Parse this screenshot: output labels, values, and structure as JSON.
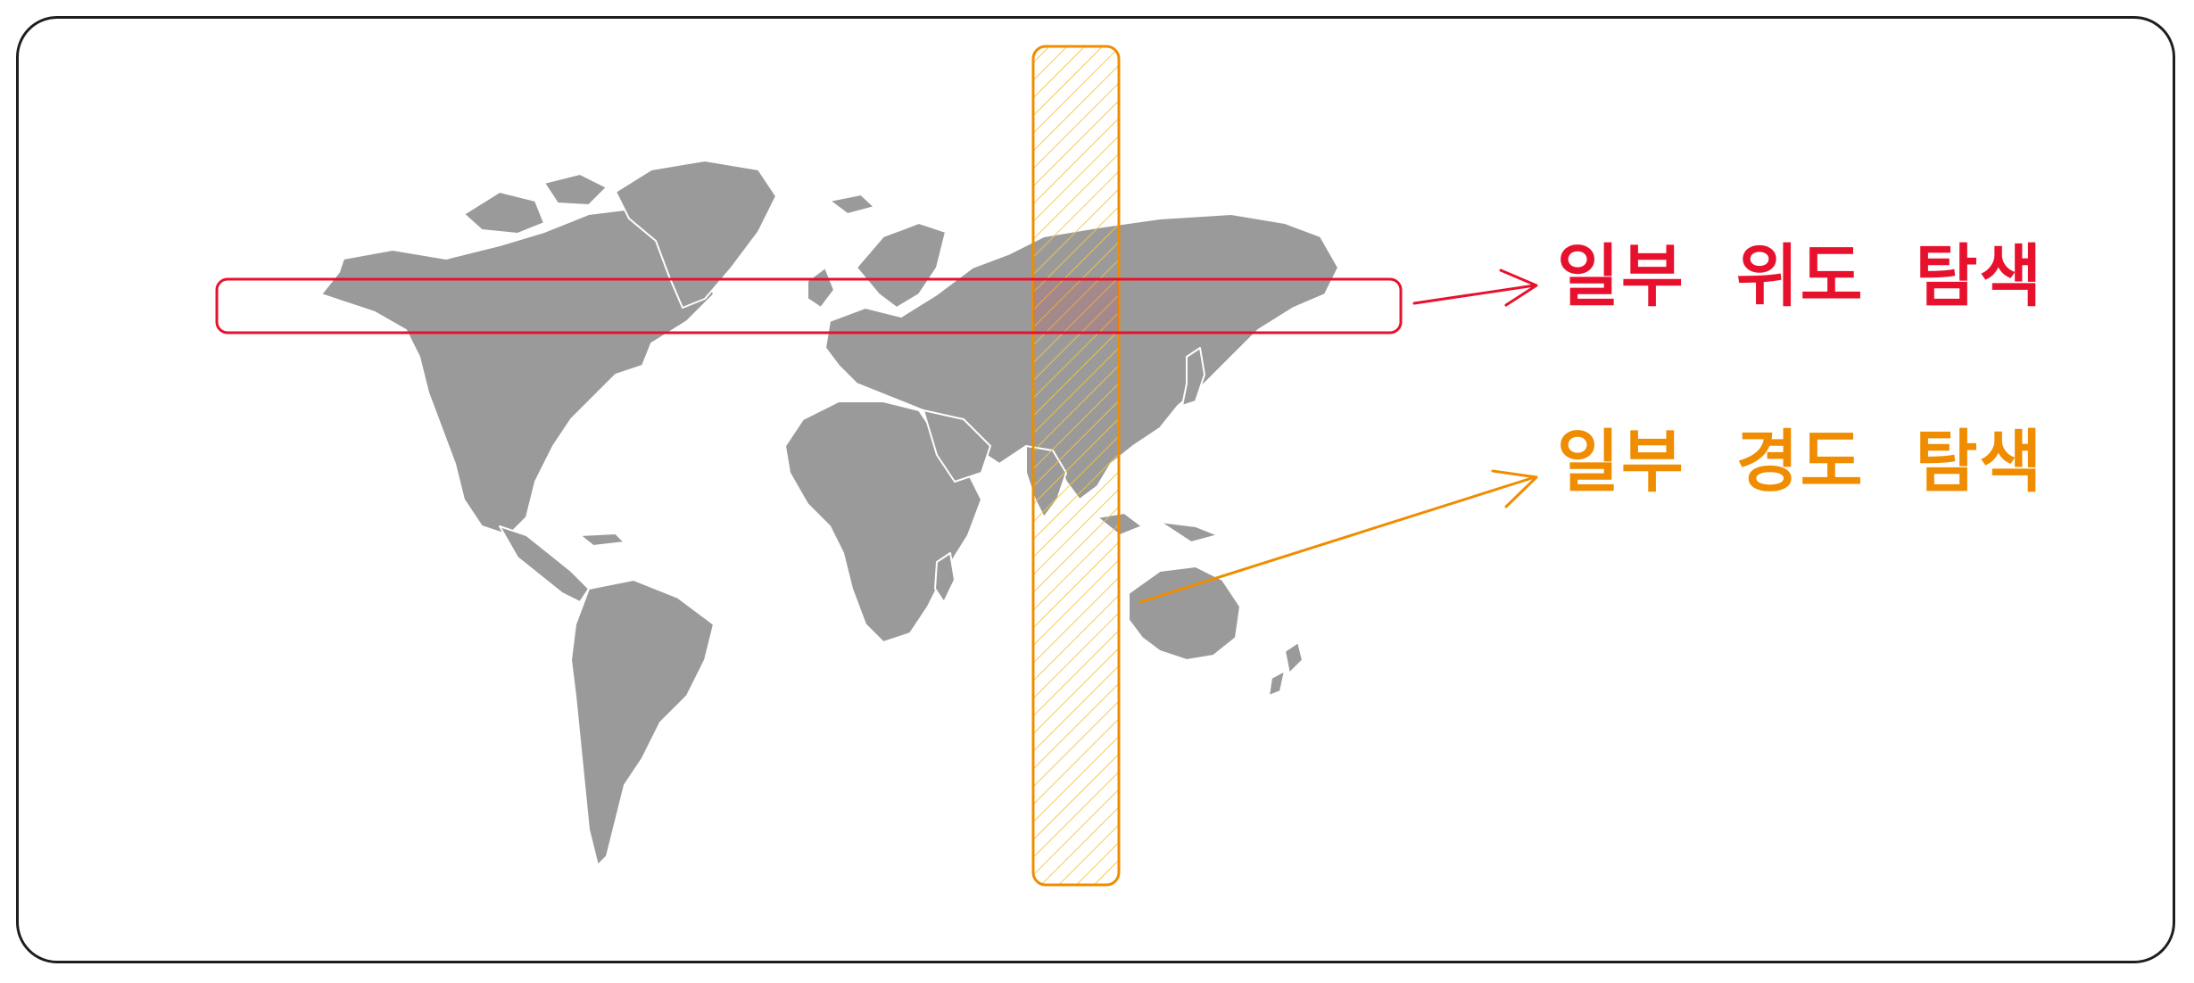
{
  "labels": {
    "latitude": "일부  위도  탐색",
    "longitude": "일부  경도  탐색"
  },
  "colors": {
    "latitude": "#e8112d",
    "longitude": "#f08c00",
    "longitude_fill": "#ffec99",
    "land": "#9a9a9a",
    "border": "#1e1e1e"
  },
  "icons": {
    "map": "world-map",
    "arrows": "arrow-right"
  }
}
